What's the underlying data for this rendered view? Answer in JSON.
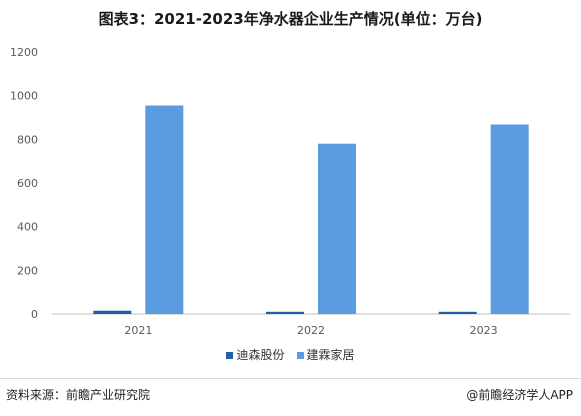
{
  "title": "图表3：2021-2023年净水器企业生产情况(单位：万台)",
  "source": "资料来源：前瞻产业研究院",
  "credit": "@前瞻经济学人APP",
  "chart_data": {
    "type": "bar",
    "categories": [
      "2021",
      "2022",
      "2023"
    ],
    "series": [
      {
        "name": "迪森股份",
        "values": [
          15,
          10,
          10
        ],
        "color": "#1f5fa8"
      },
      {
        "name": "建霖家居",
        "values": [
          955,
          780,
          868
        ],
        "color": "#5b9be0"
      }
    ],
    "yticks": [
      0,
      200,
      400,
      600,
      800,
      1000,
      1200
    ],
    "ylim": [
      0,
      1200
    ],
    "legend_position": "bottom",
    "grid": false
  }
}
